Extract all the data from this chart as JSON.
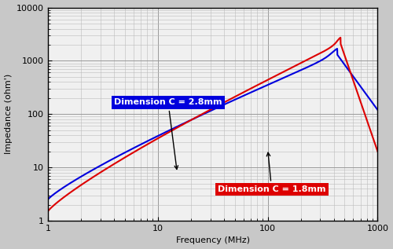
{
  "xlabel": "Frequency (MHz)",
  "ylabel": "Impedance (ohm')",
  "xlim": [
    1,
    1000
  ],
  "ylim": [
    1,
    10000
  ],
  "fig_bg_color": "#c8c8c8",
  "plot_bg_color": "#f0f0f0",
  "blue_label": "Dimension C = 2.8mm",
  "red_label": "Dimension C = 1.8mm",
  "blue_color": "#0000dd",
  "red_color": "#dd0000",
  "grid_color": "#aaaaaa",
  "grid_major_color": "#888888"
}
